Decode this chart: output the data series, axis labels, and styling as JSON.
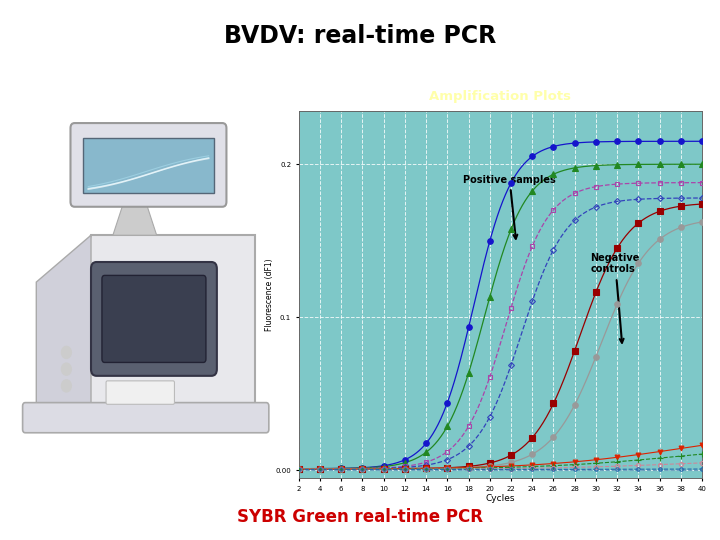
{
  "title": "BVDV: real-time PCR",
  "subtitle": "SYBR Green real-time PCR",
  "subtitle_color": "#cc0000",
  "chart_title": "Amplification Plots",
  "chart_title_color": "#ffffaa",
  "chart_title_bg": "#3d8080",
  "chart_bg": "#7ec8c8",
  "xlabel": "Cycles",
  "ylabel": "Fluorescence (dF1)",
  "xlim": [
    2,
    40
  ],
  "ylim": [
    -0.005,
    0.235
  ],
  "xticks": [
    2,
    4,
    6,
    8,
    10,
    12,
    14,
    16,
    18,
    20,
    22,
    24,
    26,
    28,
    30,
    32,
    34,
    36,
    38,
    40
  ],
  "ytick_vals": [
    0.0,
    0.1,
    0.2
  ],
  "ytick_labels": [
    "0.00",
    "0.1",
    "0.2"
  ],
  "positive_annotation": "Positive samples",
  "negative_annotation": "Negative\ncontrols",
  "curves_positive": [
    {
      "color": "#1515cc",
      "midpoint": 18.5,
      "slope": 0.55,
      "plateau": 0.215,
      "marker": "o",
      "filled": true,
      "ls": "-",
      "ms": 4
    },
    {
      "color": "#228822",
      "midpoint": 19.5,
      "slope": 0.52,
      "plateau": 0.2,
      "marker": "^",
      "filled": true,
      "ls": "-",
      "ms": 4
    },
    {
      "color": "#aa44aa",
      "midpoint": 21.5,
      "slope": 0.5,
      "plateau": 0.188,
      "marker": "s",
      "filled": false,
      "ls": "--",
      "ms": 3.5
    },
    {
      "color": "#3344bb",
      "midpoint": 23.0,
      "slope": 0.48,
      "plateau": 0.178,
      "marker": "D",
      "filled": false,
      "ls": "--",
      "ms": 3
    }
  ],
  "curves_negative": [
    {
      "color": "#990000",
      "midpoint": 28.5,
      "slope": 0.45,
      "plateau": 0.175,
      "marker": "s",
      "filled": true,
      "ls": "-",
      "ms": 4
    },
    {
      "color": "#999999",
      "midpoint": 30.5,
      "slope": 0.43,
      "plateau": 0.165,
      "marker": "o",
      "filled": true,
      "ls": "-",
      "ms": 4
    }
  ],
  "curves_flat": [
    {
      "color": "#dd2200",
      "plateau": 0.028,
      "marker": "v",
      "filled": true,
      "ls": "-",
      "ms": 3.5
    },
    {
      "color": "#228822",
      "plateau": 0.018,
      "marker": "+",
      "filled": true,
      "ls": "--",
      "ms": 4
    },
    {
      "color": "#cc8899",
      "plateau": 0.008,
      "marker": "o",
      "filled": false,
      "ls": "--",
      "ms": 3
    },
    {
      "color": "#2266aa",
      "plateau": 0.001,
      "marker": "o",
      "filled": false,
      "ls": "--",
      "ms": 2.5
    }
  ]
}
